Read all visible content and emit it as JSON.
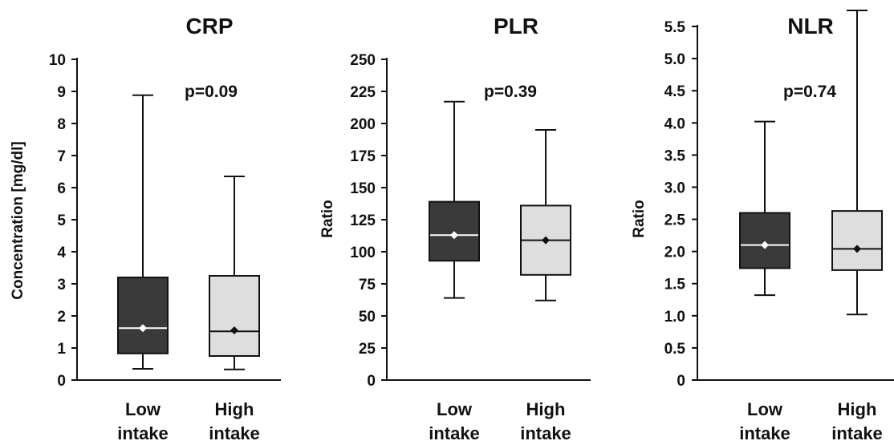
{
  "chart_data": [
    {
      "type": "box",
      "title": "CRP",
      "ylabel": "Concentration  [mg/dl]",
      "annotation": "p=0.09",
      "ylim": [
        0,
        10
      ],
      "yticks": [
        0,
        1,
        2,
        3,
        4,
        5,
        6,
        7,
        8,
        9,
        10
      ],
      "ytick_labels": [
        "0",
        "1",
        "2",
        "3",
        "4",
        "5",
        "6",
        "7",
        "8",
        "9",
        "10"
      ],
      "categories": [
        {
          "line1": "Low",
          "line2": "intake"
        },
        {
          "line1": "High",
          "line2": "intake"
        }
      ],
      "boxes": [
        {
          "min": 0.35,
          "q1": 0.83,
          "median": 1.62,
          "q3": 3.2,
          "max": 8.88,
          "mean": 1.62,
          "fill": "#3a3a3a",
          "median_color": "#ffffff",
          "mean_color": "#ffffff"
        },
        {
          "min": 0.33,
          "q1": 0.75,
          "median": 1.52,
          "q3": 3.25,
          "max": 6.35,
          "mean": 1.55,
          "fill": "#dedede",
          "median_color": "#111111",
          "mean_color": "#111111"
        }
      ]
    },
    {
      "type": "box",
      "title": "PLR",
      "ylabel": "Ratio",
      "annotation": "p=0.39",
      "ylim": [
        0,
        250
      ],
      "yticks": [
        0,
        25,
        50,
        75,
        100,
        125,
        150,
        175,
        200,
        225,
        250
      ],
      "ytick_labels": [
        "0",
        "25",
        "50",
        "75",
        "100",
        "125",
        "150",
        "175",
        "200",
        "225",
        "250"
      ],
      "categories": [
        {
          "line1": "Low",
          "line2": "intake"
        },
        {
          "line1": "High",
          "line2": "intake"
        }
      ],
      "boxes": [
        {
          "min": 64,
          "q1": 93,
          "median": 113,
          "q3": 139,
          "max": 217,
          "mean": 113,
          "fill": "#3a3a3a",
          "median_color": "#ffffff",
          "mean_color": "#ffffff"
        },
        {
          "min": 62,
          "q1": 82,
          "median": 109,
          "q3": 136,
          "max": 195,
          "mean": 109,
          "fill": "#dedede",
          "median_color": "#111111",
          "mean_color": "#111111"
        }
      ]
    },
    {
      "type": "box",
      "title": "NLR",
      "ylabel": "Ratio",
      "annotation": "p=0.74",
      "ylim": [
        0,
        5.5
      ],
      "yticks": [
        0,
        0.5,
        1.0,
        1.5,
        2.0,
        2.5,
        3.0,
        3.5,
        4.0,
        4.5,
        5.0,
        5.5
      ],
      "ytick_labels": [
        "0",
        "0.5",
        "1.0",
        "1.5",
        "2.0",
        "2.5",
        "3.0",
        "3.5",
        "4.0",
        "4.5",
        "5.0",
        "5.5"
      ],
      "categories": [
        {
          "line1": "Low",
          "line2": "intake"
        },
        {
          "line1": "High",
          "line2": "intake"
        }
      ],
      "boxes": [
        {
          "min": 1.32,
          "q1": 1.74,
          "median": 2.1,
          "q3": 2.6,
          "max": 4.02,
          "mean": 2.1,
          "fill": "#3a3a3a",
          "median_color": "#ffffff",
          "mean_color": "#ffffff"
        },
        {
          "min": 1.02,
          "q1": 1.71,
          "median": 2.04,
          "q3": 2.63,
          "max": 5.75,
          "mean": 2.04,
          "fill": "#dedede",
          "median_color": "#111111",
          "mean_color": "#111111"
        }
      ]
    }
  ]
}
